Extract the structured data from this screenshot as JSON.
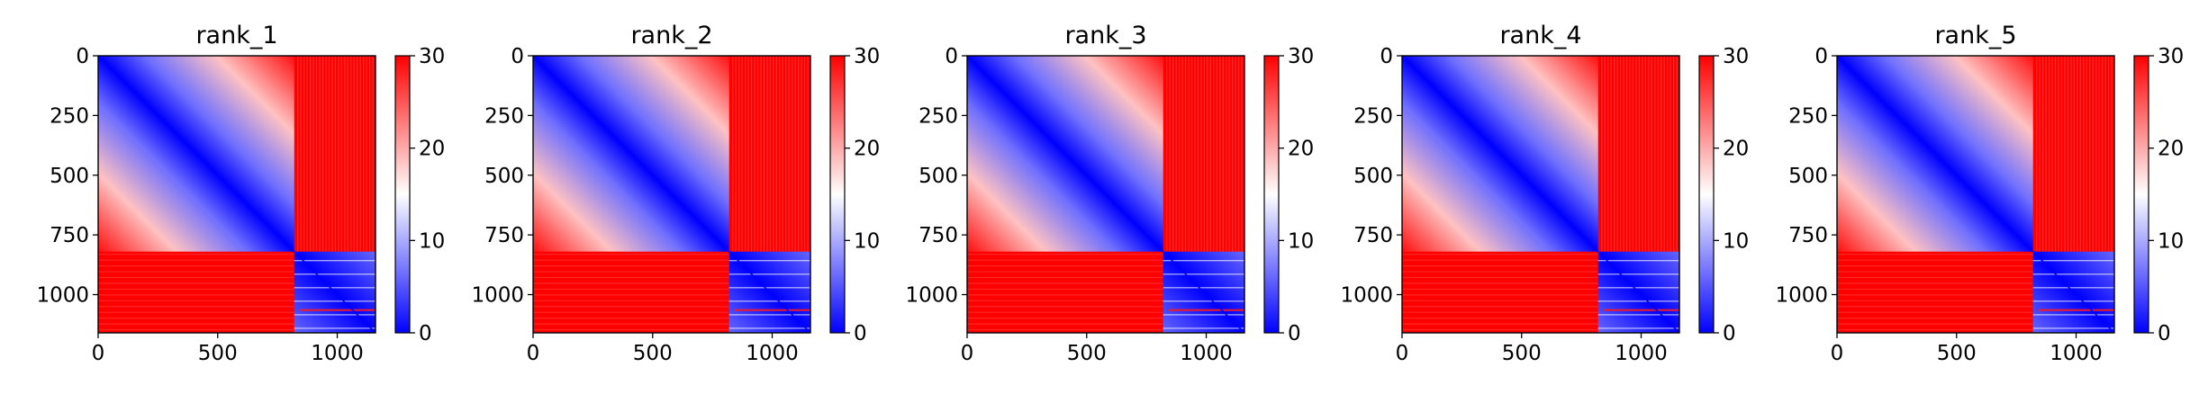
{
  "chart_data": [
    {
      "type": "heatmap",
      "title": "rank_1",
      "matrix_size": 1160,
      "block_split": 820,
      "x_ticks": [
        0,
        500,
        1000
      ],
      "y_ticks": [
        0,
        250,
        500,
        750,
        1000
      ],
      "colorbar": {
        "range": [
          0,
          30
        ],
        "ticks": [
          0,
          10,
          20,
          30
        ],
        "colormap": "bwr"
      },
      "within_block_values": [
        0,
        15
      ],
      "cross_block_value": 30
    },
    {
      "type": "heatmap",
      "title": "rank_2",
      "matrix_size": 1160,
      "block_split": 820,
      "x_ticks": [
        0,
        500,
        1000
      ],
      "y_ticks": [
        0,
        250,
        500,
        750,
        1000
      ],
      "colorbar": {
        "range": [
          0,
          30
        ],
        "ticks": [
          0,
          10,
          20,
          30
        ],
        "colormap": "bwr"
      },
      "within_block_values": [
        0,
        15
      ],
      "cross_block_value": 30
    },
    {
      "type": "heatmap",
      "title": "rank_3",
      "matrix_size": 1160,
      "block_split": 820,
      "x_ticks": [
        0,
        500,
        1000
      ],
      "y_ticks": [
        0,
        250,
        500,
        750,
        1000
      ],
      "colorbar": {
        "range": [
          0,
          30
        ],
        "ticks": [
          0,
          10,
          20,
          30
        ],
        "colormap": "bwr"
      },
      "within_block_values": [
        0,
        15
      ],
      "cross_block_value": 30
    },
    {
      "type": "heatmap",
      "title": "rank_4",
      "matrix_size": 1160,
      "block_split": 820,
      "x_ticks": [
        0,
        500,
        1000
      ],
      "y_ticks": [
        0,
        250,
        500,
        750,
        1000
      ],
      "colorbar": {
        "range": [
          0,
          30
        ],
        "ticks": [
          0,
          10,
          20,
          30
        ],
        "colormap": "bwr"
      },
      "within_block_values": [
        0,
        15
      ],
      "cross_block_value": 30
    },
    {
      "type": "heatmap",
      "title": "rank_5",
      "matrix_size": 1160,
      "block_split": 820,
      "x_ticks": [
        0,
        500,
        1000
      ],
      "y_ticks": [
        0,
        250,
        500,
        750,
        1000
      ],
      "colorbar": {
        "range": [
          0,
          30
        ],
        "ticks": [
          0,
          10,
          20,
          30
        ],
        "colormap": "bwr"
      },
      "within_block_values": [
        0,
        15
      ],
      "cross_block_value": 30
    }
  ]
}
